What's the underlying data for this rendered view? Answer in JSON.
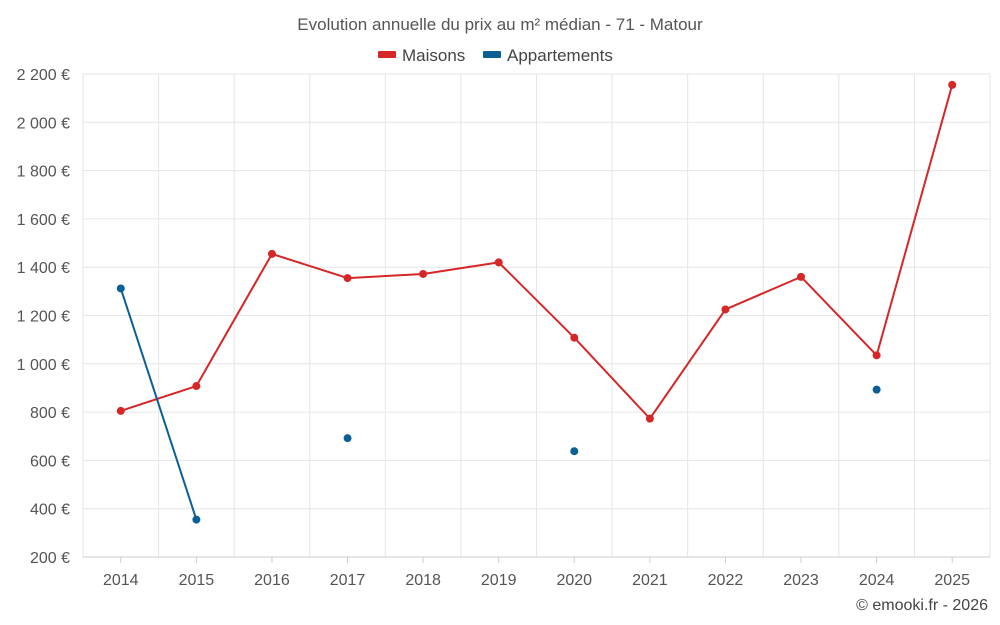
{
  "chart_data": {
    "type": "line",
    "title": "Evolution annuelle du prix au m² médian - 71 - Matour",
    "categories": [
      "2014",
      "2015",
      "2016",
      "2017",
      "2018",
      "2019",
      "2020",
      "2021",
      "2022",
      "2023",
      "2024",
      "2025"
    ],
    "series": [
      {
        "name": "Maisons",
        "color": "#d62728",
        "values": [
          805,
          908,
          1455,
          1355,
          1372,
          1420,
          1108,
          773,
          1225,
          1360,
          1035,
          2155
        ]
      },
      {
        "name": "Appartements",
        "color": "#0a5f96",
        "values": [
          1312,
          355,
          null,
          692,
          null,
          null,
          638,
          null,
          null,
          null,
          893,
          null
        ]
      }
    ],
    "ylim": [
      200,
      2200
    ],
    "yticks": [
      200,
      400,
      600,
      800,
      1000,
      1200,
      1400,
      1600,
      1800,
      2000,
      2200
    ],
    "ytick_labels": [
      "200 €",
      "400 €",
      "600 €",
      "800 €",
      "1 000 €",
      "1 200 €",
      "1 400 €",
      "1 600 €",
      "1 800 €",
      "2 000 €",
      "2 200 €"
    ],
    "legend_position": "top-center",
    "grid": true
  },
  "credit": "© emooki.fr - 2026"
}
